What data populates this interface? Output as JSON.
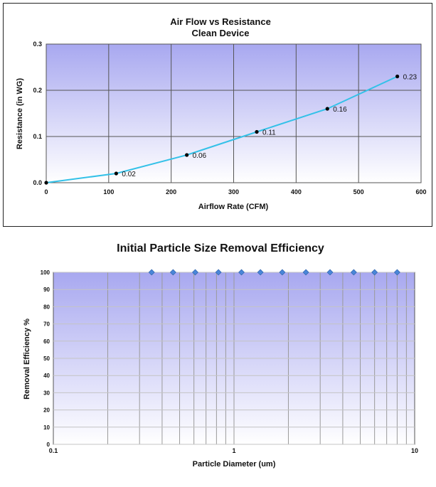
{
  "chart_data": [
    {
      "type": "line",
      "title": "Air Flow vs Resistance",
      "subtitle": "Clean Device",
      "xlabel": "Airflow Rate (CFM)",
      "ylabel": "Resistance (in WG)",
      "xlim": [
        0,
        600
      ],
      "ylim": [
        0,
        0.3
      ],
      "x_ticks": [
        "0",
        "100",
        "200",
        "300",
        "400",
        "500",
        "600"
      ],
      "y_ticks": [
        "0.0",
        "0.1",
        "0.2",
        "0.3"
      ],
      "grid": true,
      "series": [
        {
          "color": "#33c1e8",
          "points": [
            {
              "x": 0,
              "y": 0.0,
              "label": ""
            },
            {
              "x": 112,
              "y": 0.02,
              "label": "0.02"
            },
            {
              "x": 225,
              "y": 0.06,
              "label": "0.06"
            },
            {
              "x": 337,
              "y": 0.11,
              "label": "0.11"
            },
            {
              "x": 450,
              "y": 0.16,
              "label": "0.16"
            },
            {
              "x": 562,
              "y": 0.23,
              "label": "0.23"
            }
          ]
        }
      ]
    },
    {
      "type": "scatter",
      "title": "Initial Particle Size Removal Efficiency",
      "xlabel": "Particle Diameter (um)",
      "ylabel": "Removal Efficiency %",
      "xscale": "log",
      "xlim": [
        0.1,
        10
      ],
      "ylim": [
        0,
        100
      ],
      "x_ticks": [
        "0.1",
        "1",
        "10"
      ],
      "y_ticks": [
        "0",
        "10",
        "20",
        "30",
        "40",
        "50",
        "60",
        "70",
        "80",
        "90",
        "100"
      ],
      "grid": true,
      "series": [
        {
          "color": "#4a86d8",
          "x": [
            0.35,
            0.46,
            0.61,
            0.82,
            1.1,
            1.4,
            1.85,
            2.5,
            3.4,
            4.6,
            6.0,
            8.0
          ],
          "y": [
            100,
            100,
            100,
            100,
            100,
            100,
            100,
            100,
            100,
            100,
            100,
            100
          ]
        }
      ]
    }
  ]
}
